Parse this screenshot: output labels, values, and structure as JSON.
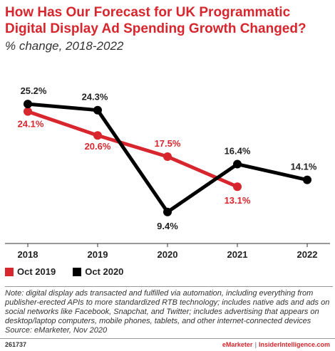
{
  "header": {
    "title": "How Has Our Forecast for UK Programmatic Digital Display Ad Spending Growth Changed?",
    "subtitle": "% change, 2018-2022"
  },
  "chart_data": {
    "type": "line",
    "title": "How Has Our Forecast for UK Programmatic Digital Display Ad Spending Growth Changed?",
    "subtitle": "% change, 2018-2022",
    "categories": [
      "2018",
      "2019",
      "2020",
      "2021",
      "2022"
    ],
    "ylim": [
      5,
      30
    ],
    "grid": false,
    "legend_position": "bottom-left",
    "series": [
      {
        "name": "Oct 2019",
        "color": "#d7262d",
        "values": [
          24.1,
          20.6,
          17.5,
          13.1,
          null
        ],
        "labels": [
          "24.1%",
          "20.6%",
          "17.5%",
          "13.1%",
          ""
        ]
      },
      {
        "name": "Oct 2020",
        "color": "#000000",
        "values": [
          25.2,
          24.3,
          9.4,
          16.4,
          14.1
        ],
        "labels": [
          "25.2%",
          "24.3%",
          "9.4%",
          "16.4%",
          "14.1%"
        ]
      }
    ]
  },
  "legend": {
    "items": [
      {
        "label": "Oct 2019",
        "color": "#d7262d"
      },
      {
        "label": "Oct 2020",
        "color": "#000000"
      }
    ]
  },
  "note": {
    "text": "Note: digital display ads transacted and fulfilled via automation, including everything from publisher-erected APIs to more standardized RTB technology; includes native ads and ads on social networks like Facebook, Snapchat, and Twitter; includes advertising that appears on desktop/laptop computers, mobile phones, tablets, and other internet-connected devices",
    "source": "Source: eMarketer, Nov 2020"
  },
  "footer": {
    "id": "261737",
    "brand_left": "eMarketer",
    "brand_sep": "|",
    "brand_right": "InsiderIntelligence.com"
  }
}
